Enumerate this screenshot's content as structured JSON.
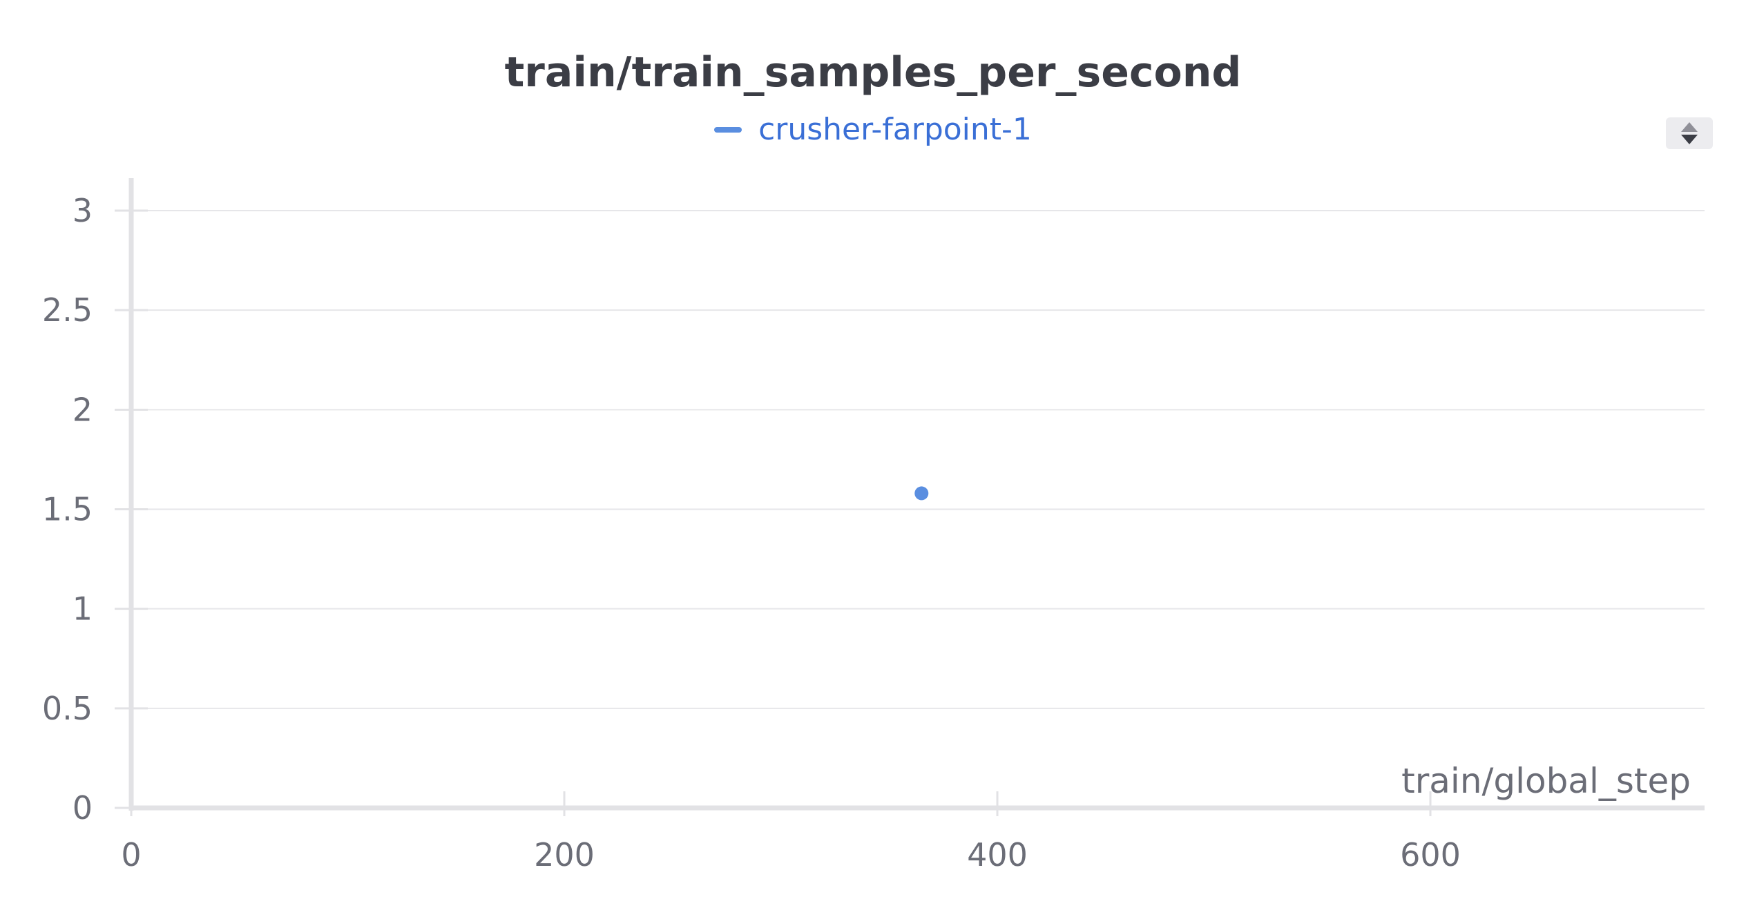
{
  "chart_data": {
    "type": "scatter",
    "title": "train/train_samples_per_second",
    "xlabel": "train/global_step",
    "ylabel": "",
    "xlim": [
      0,
      730
    ],
    "ylim": [
      0,
      3.15
    ],
    "x_ticks": [
      0,
      200,
      400,
      600
    ],
    "x_tick_labels": [
      "0",
      "200",
      "400",
      "600"
    ],
    "y_ticks": [
      0,
      0.5,
      1,
      1.5,
      2,
      2.5,
      3
    ],
    "y_tick_labels": [
      "0",
      "0.5",
      "1",
      "1.5",
      "2",
      "2.5",
      "3"
    ],
    "grid": "horizontal",
    "legend_position": "top-center",
    "series": [
      {
        "name": "crusher-farpoint-1",
        "color": "#5a8ee0",
        "points": [
          {
            "x": 365,
            "y": 1.58
          }
        ]
      }
    ]
  },
  "legend": {
    "label_color": "#3a6fd6",
    "sort_control_icon": "sort-updown-icon"
  },
  "colors": {
    "grid": "#e6e6e9",
    "axis": "#e2e2e5",
    "text": "#6b6d77",
    "title": "#3b3d45"
  }
}
